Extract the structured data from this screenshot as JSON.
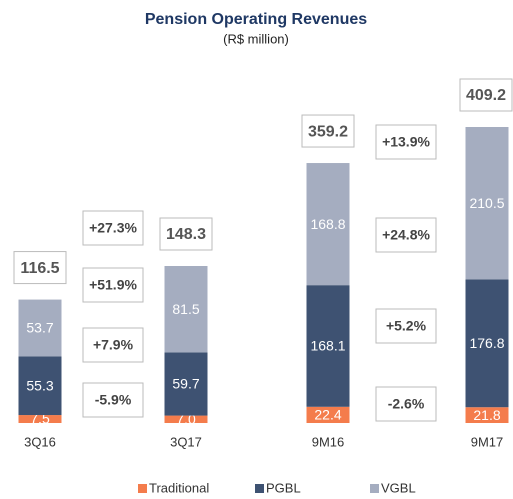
{
  "chart_data": {
    "type": "stacked_bar",
    "title": "Pension Operating Revenues",
    "subtitle": "(R$ million)",
    "categories": [
      "3Q16",
      "3Q17",
      "9M16",
      "9M17"
    ],
    "series": [
      {
        "name": "Traditional",
        "color": "#f47c4c",
        "values": [
          7.5,
          7.0,
          22.4,
          21.8
        ],
        "value_labels": [
          "7.5",
          "7.0",
          "22.4",
          "21.8"
        ]
      },
      {
        "name": "PGBL",
        "color": "#3e5272",
        "values": [
          55.3,
          59.7,
          168.1,
          176.8
        ]
      },
      {
        "name": "VGBL",
        "color": "#a5adc0",
        "values": [
          53.7,
          81.5,
          168.8,
          210.5
        ]
      }
    ],
    "totals": [
      116.5,
      148.3,
      359.2,
      409.2
    ],
    "annotations": [
      [
        "+27.3%",
        "+51.9%",
        "+7.9%",
        "-5.9%"
      ],
      [
        "+13.9%",
        "+24.8%",
        "+5.2%",
        "-2.6%"
      ]
    ]
  }
}
